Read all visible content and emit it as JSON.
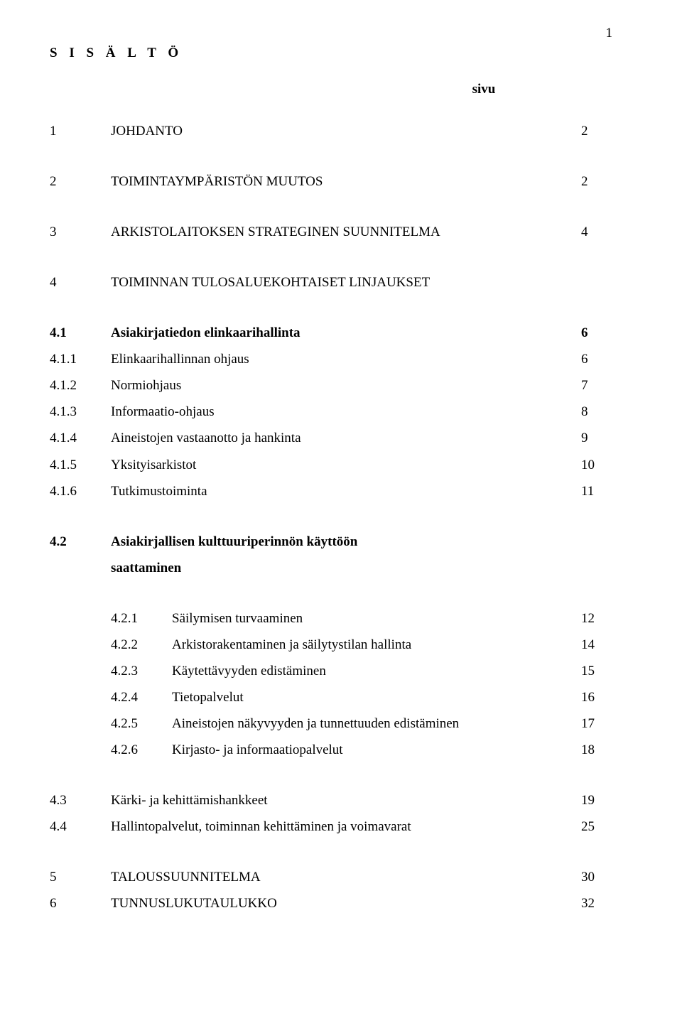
{
  "page_number_top": "1",
  "heading": "S I S Ä L T Ö",
  "page_label": "sivu",
  "top_level": [
    {
      "num": "1",
      "title": "JOHDANTO",
      "page": "2"
    },
    {
      "num": "2",
      "title": "TOIMINTAYMPÄRISTÖN MUUTOS",
      "page": "2"
    },
    {
      "num": "3",
      "title": "ARKISTOLAITOKSEN STRATEGINEN SUUNNITELMA",
      "page": "4"
    },
    {
      "num": "4",
      "title": "TOIMINNAN TULOSALUEKOHTAISET LINJAUKSET",
      "page": ""
    }
  ],
  "section_4_1": {
    "num": "4.1",
    "title": "Asiakirjatiedon elinkaarihallinta",
    "page": "6",
    "items": [
      {
        "num": "4.1.1",
        "title": "Elinkaarihallinnan ohjaus",
        "page": "6"
      },
      {
        "num": "4.1.2",
        "title": "Normiohjaus",
        "page": "7"
      },
      {
        "num": "4.1.3",
        "title": "Informaatio-ohjaus",
        "page": "8"
      },
      {
        "num": "4.1.4",
        "title": "Aineistojen vastaanotto ja hankinta",
        "page": "9"
      },
      {
        "num": "4.1.5",
        "title": "Yksityisarkistot",
        "page": "10"
      },
      {
        "num": "4.1.6",
        "title": "Tutkimustoiminta",
        "page": "11"
      }
    ]
  },
  "section_4_2": {
    "num": "4.2",
    "title_line1": "Asiakirjallisen kulttuuriperinnön käyttöön",
    "title_line2": "saattaminen",
    "page": "",
    "items": [
      {
        "num": "4.2.1",
        "title": "Säilymisen turvaaminen",
        "page": "12"
      },
      {
        "num": "4.2.2",
        "title": "Arkistorakentaminen ja säilytystilan hallinta",
        "page": "14"
      },
      {
        "num": "4.2.3",
        "title": "Käytettävyyden edistäminen",
        "page": "15"
      },
      {
        "num": "4.2.4",
        "title": "Tietopalvelut",
        "page": "16"
      },
      {
        "num": "4.2.5",
        "title": "Aineistojen näkyvyyden ja tunnettuuden edistäminen",
        "page": "17"
      },
      {
        "num": "4.2.6",
        "title": "Kirjasto- ja informaatiopalvelut",
        "page": "18"
      }
    ]
  },
  "section_4_tail": [
    {
      "num": "4.3",
      "title": "Kärki- ja kehittämishankkeet",
      "page": "19"
    },
    {
      "num": "4.4",
      "title": "Hallintopalvelut, toiminnan kehittäminen ja voimavarat",
      "page": "25"
    }
  ],
  "bottom": [
    {
      "num": "5",
      "title": "TALOUSSUUNNITELMA",
      "page": "30"
    },
    {
      "num": "6",
      "title": "TUNNUSLUKUTAULUKKO",
      "page": "32"
    }
  ]
}
